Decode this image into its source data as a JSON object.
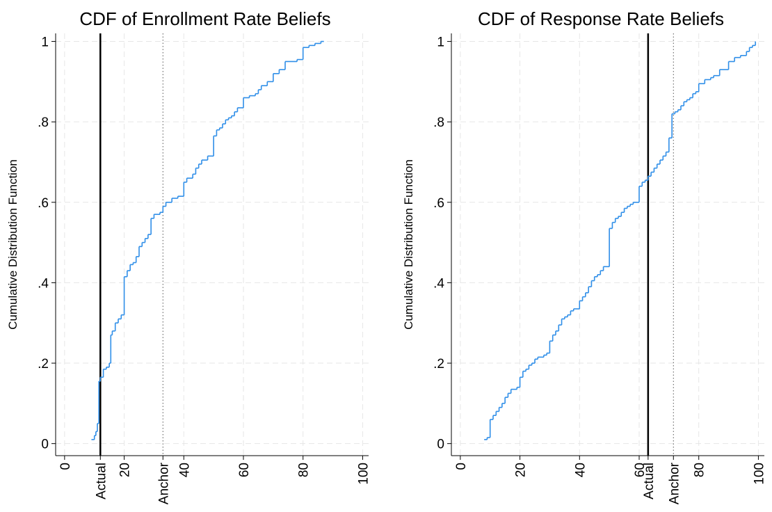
{
  "chart_data": [
    {
      "type": "step",
      "title": "CDF of Enrollment Rate Beliefs",
      "ylabel": "Cumulative Distribution Function",
      "color": "#2e8ee8",
      "grid": true,
      "xlim": [
        -3,
        102
      ],
      "ylim": [
        -0.03,
        1.02
      ],
      "xticks": [
        0,
        {
          "value": 12,
          "label": "Actual",
          "line": "solid"
        },
        20,
        {
          "value": 33,
          "label": "Anchor",
          "line": "dotted"
        },
        40,
        60,
        80,
        100
      ],
      "yticks": [
        0,
        {
          "value": 0.2,
          "label": ".2"
        },
        {
          "value": 0.4,
          "label": ".4"
        },
        {
          "value": 0.6,
          "label": ".6"
        },
        {
          "value": 0.8,
          "label": ".8"
        },
        1
      ],
      "x": [
        9,
        10,
        10.5,
        11,
        11.5,
        12,
        13,
        14,
        15,
        15.5,
        16,
        17,
        18,
        19,
        20,
        21,
        22,
        23,
        24,
        25,
        26,
        27,
        28,
        29,
        30,
        32,
        33,
        34,
        36,
        38,
        40,
        41,
        43,
        44,
        45,
        46,
        48,
        50,
        51,
        52,
        53,
        54,
        55,
        56,
        57,
        58,
        60,
        62,
        64,
        65,
        66,
        68,
        70,
        72,
        74,
        78,
        80,
        82,
        84,
        86,
        87
      ],
      "values": [
        0.01,
        0.02,
        0.03,
        0.05,
        0.155,
        0.165,
        0.185,
        0.19,
        0.2,
        0.27,
        0.28,
        0.3,
        0.31,
        0.32,
        0.415,
        0.43,
        0.445,
        0.45,
        0.465,
        0.49,
        0.5,
        0.51,
        0.52,
        0.56,
        0.57,
        0.575,
        0.59,
        0.6,
        0.61,
        0.615,
        0.65,
        0.66,
        0.67,
        0.685,
        0.695,
        0.705,
        0.715,
        0.765,
        0.78,
        0.785,
        0.795,
        0.805,
        0.81,
        0.815,
        0.825,
        0.835,
        0.86,
        0.865,
        0.87,
        0.88,
        0.89,
        0.9,
        0.92,
        0.93,
        0.95,
        0.955,
        0.985,
        0.99,
        0.995,
        1.0,
        1.0
      ]
    },
    {
      "type": "step",
      "title": "CDF of Response Rate Beliefs",
      "ylabel": "Cumulative Distribution Function",
      "color": "#2e8ee8",
      "grid": true,
      "xlim": [
        -3,
        102
      ],
      "ylim": [
        -0.03,
        1.02
      ],
      "xticks": [
        0,
        20,
        40,
        60,
        {
          "value": 63,
          "label": "Actual",
          "line": "solid"
        },
        {
          "value": 71.5,
          "label": "Anchor",
          "line": "dotted"
        },
        80,
        100
      ],
      "yticks": [
        0,
        {
          "value": 0.2,
          "label": ".2"
        },
        {
          "value": 0.4,
          "label": ".4"
        },
        {
          "value": 0.6,
          "label": ".6"
        },
        {
          "value": 0.8,
          "label": ".8"
        },
        1
      ],
      "x": [
        8,
        9,
        10,
        11,
        12,
        13,
        14,
        15,
        16,
        17,
        19,
        20,
        21,
        22,
        23,
        24,
        25,
        26,
        28,
        29,
        30,
        31,
        32,
        33,
        34,
        35,
        36,
        37,
        38,
        40,
        41,
        42,
        43,
        44,
        45,
        46,
        47,
        48,
        50,
        51,
        52,
        53,
        54,
        55,
        56,
        57,
        58,
        60,
        61,
        62,
        63,
        64,
        65,
        66,
        67,
        68,
        69,
        70,
        71,
        72,
        73,
        74,
        75,
        76,
        77,
        78,
        79,
        80,
        82,
        84,
        85,
        87,
        90,
        92,
        94,
        96,
        97,
        98,
        99
      ],
      "values": [
        0.01,
        0.015,
        0.06,
        0.07,
        0.08,
        0.09,
        0.1,
        0.115,
        0.125,
        0.135,
        0.14,
        0.165,
        0.18,
        0.185,
        0.195,
        0.2,
        0.21,
        0.215,
        0.22,
        0.225,
        0.255,
        0.27,
        0.28,
        0.295,
        0.31,
        0.315,
        0.32,
        0.33,
        0.335,
        0.355,
        0.365,
        0.375,
        0.39,
        0.405,
        0.415,
        0.42,
        0.43,
        0.44,
        0.535,
        0.55,
        0.56,
        0.565,
        0.575,
        0.585,
        0.59,
        0.595,
        0.6,
        0.64,
        0.65,
        0.655,
        0.665,
        0.675,
        0.685,
        0.695,
        0.705,
        0.715,
        0.725,
        0.76,
        0.82,
        0.825,
        0.83,
        0.84,
        0.85,
        0.855,
        0.86,
        0.87,
        0.875,
        0.895,
        0.905,
        0.91,
        0.915,
        0.93,
        0.95,
        0.96,
        0.965,
        0.975,
        0.985,
        0.99,
        1.0
      ]
    }
  ]
}
